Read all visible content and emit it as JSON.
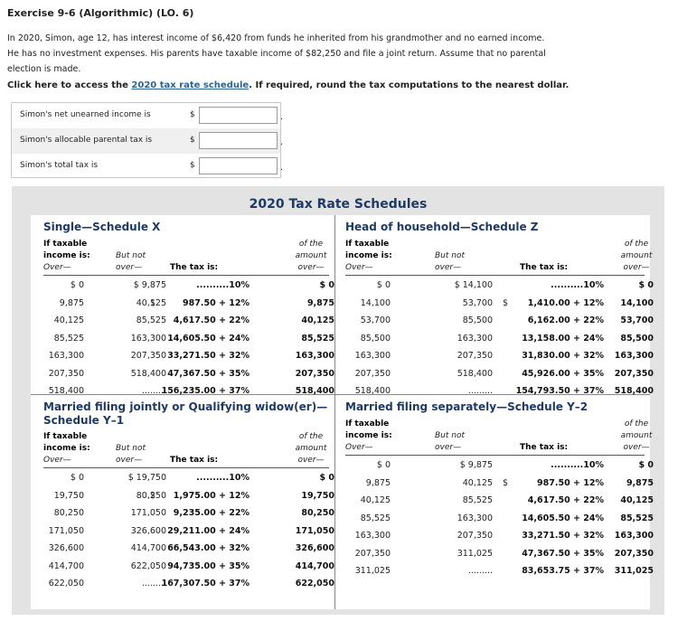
{
  "header": {
    "title": "Exercise 9-6 (Algorithmic) (LO. 6)",
    "para_lines": [
      "In 2020, Simon, age 12, has interest income of $6,420 from funds he inherited from his grandmother and no earned income.",
      "He has no investment expenses. His parents have taxable income of $82,250 and file a joint return. Assume that no parental",
      "election is made."
    ],
    "click_prefix": "Click here to access the ",
    "click_link": "2020 tax rate schedule",
    "click_suffix": ". If required, round the tax computations to the nearest dollar."
  },
  "inputs": [
    {
      "label": "Simon's net unearned income is",
      "currency": "$",
      "value": "",
      "suffix": "."
    },
    {
      "label": "Simon's allocable parental tax is",
      "currency": "$",
      "value": "",
      "suffix": "."
    },
    {
      "label": "Simon's total tax is",
      "currency": "$",
      "value": "",
      "suffix": "."
    }
  ],
  "schedules_title": "2020 Tax Rate Schedules",
  "col_headers": {
    "if_taxable": "If taxable",
    "income_is": "income is:",
    "over": "Over—",
    "but_not": "But not",
    "over2": "over—",
    "tax_is": "The tax is:",
    "of_the": "of the",
    "amount": "amount",
    "over3": "over—"
  },
  "schedules": [
    {
      "name": "Single—Schedule X",
      "rows": [
        {
          "a": "$        0",
          "b": "$  9,875",
          "c": "",
          "t": "..........10%",
          "d": "$          0"
        },
        {
          "a": "9,875",
          "b": "40,125",
          "c": "$",
          "t": "987.50 + 12%",
          "d": "9,875"
        },
        {
          "a": "40,125",
          "b": "85,525",
          "c": "",
          "t": "4,617.50 + 22%",
          "d": "40,125"
        },
        {
          "a": "85,525",
          "b": "163,300",
          "c": "",
          "t": "14,605.50 + 24%",
          "d": "85,525"
        },
        {
          "a": "163,300",
          "b": "207,350",
          "c": "",
          "t": "33,271.50 + 32%",
          "d": "163,300"
        },
        {
          "a": "207,350",
          "b": "518,400",
          "c": "",
          "t": "47,367.50 + 35%",
          "d": "207,350"
        },
        {
          "a": "518,400",
          "b": ".........",
          "c": "",
          "t": "156,235.00 + 37%",
          "d": "518,400"
        }
      ]
    },
    {
      "name": "Head of household—Schedule Z",
      "rows": [
        {
          "a": "$          0",
          "b": "$ 14,100",
          "c": "",
          "t": "..........10%",
          "d": "$          0"
        },
        {
          "a": "14,100",
          "b": "53,700",
          "c": "$",
          "t": "1,410.00 + 12%",
          "d": "14,100"
        },
        {
          "a": "53,700",
          "b": "85,500",
          "c": "",
          "t": "6,162.00 + 22%",
          "d": "53,700"
        },
        {
          "a": "85,500",
          "b": "163,300",
          "c": "",
          "t": "13,158.00 + 24%",
          "d": "85,500"
        },
        {
          "a": "163,300",
          "b": "207,350",
          "c": "",
          "t": "31,830.00 + 32%",
          "d": "163,300"
        },
        {
          "a": "207,350",
          "b": "518,400",
          "c": "",
          "t": "45,926.00 + 35%",
          "d": "207,350"
        },
        {
          "a": "518,400",
          "b": ".........",
          "c": "",
          "t": "154,793.50 + 37%",
          "d": "518,400"
        }
      ]
    },
    {
      "name": "Married filing jointly or Qualifying widow(er)—",
      "name2": "Schedule Y–1",
      "rows": [
        {
          "a": "$        0",
          "b": "$ 19,750",
          "c": "",
          "t": "..........10%",
          "d": "$          0"
        },
        {
          "a": "19,750",
          "b": "80,250",
          "c": "$",
          "t": "1,975.00 + 12%",
          "d": "19,750"
        },
        {
          "a": "80,250",
          "b": "171,050",
          "c": "",
          "t": "9,235.00 + 22%",
          "d": "80,250"
        },
        {
          "a": "171,050",
          "b": "326,600",
          "c": "",
          "t": "29,211.00 + 24%",
          "d": "171,050"
        },
        {
          "a": "326,600",
          "b": "414,700",
          "c": "",
          "t": "66,543.00 + 32%",
          "d": "326,600"
        },
        {
          "a": "414,700",
          "b": "622,050",
          "c": "",
          "t": "94,735.00 + 35%",
          "d": "414,700"
        },
        {
          "a": "622,050",
          "b": ".........",
          "c": "",
          "t": "167,307.50 + 37%",
          "d": "622,050"
        }
      ]
    },
    {
      "name": "Married filing separately—Schedule Y–2",
      "rows": [
        {
          "a": "$          0",
          "b": "$  9,875",
          "c": "",
          "t": "..........10%",
          "d": "$          0"
        },
        {
          "a": "9,875",
          "b": "40,125",
          "c": "$",
          "t": "987.50 + 12%",
          "d": "9,875"
        },
        {
          "a": "40,125",
          "b": "85,525",
          "c": "",
          "t": "4,617.50 + 22%",
          "d": "40,125"
        },
        {
          "a": "85,525",
          "b": "163,300",
          "c": "",
          "t": "14,605.50 + 24%",
          "d": "85,525"
        },
        {
          "a": "163,300",
          "b": "207,350",
          "c": "",
          "t": "33,271.50 + 32%",
          "d": "163,300"
        },
        {
          "a": "207,350",
          "b": "311,025",
          "c": "",
          "t": "47,367.50 + 35%",
          "d": "207,350"
        },
        {
          "a": "311,025",
          "b": ".........",
          "c": "",
          "t": "83,653.75 + 37%",
          "d": "311,025"
        }
      ]
    }
  ]
}
